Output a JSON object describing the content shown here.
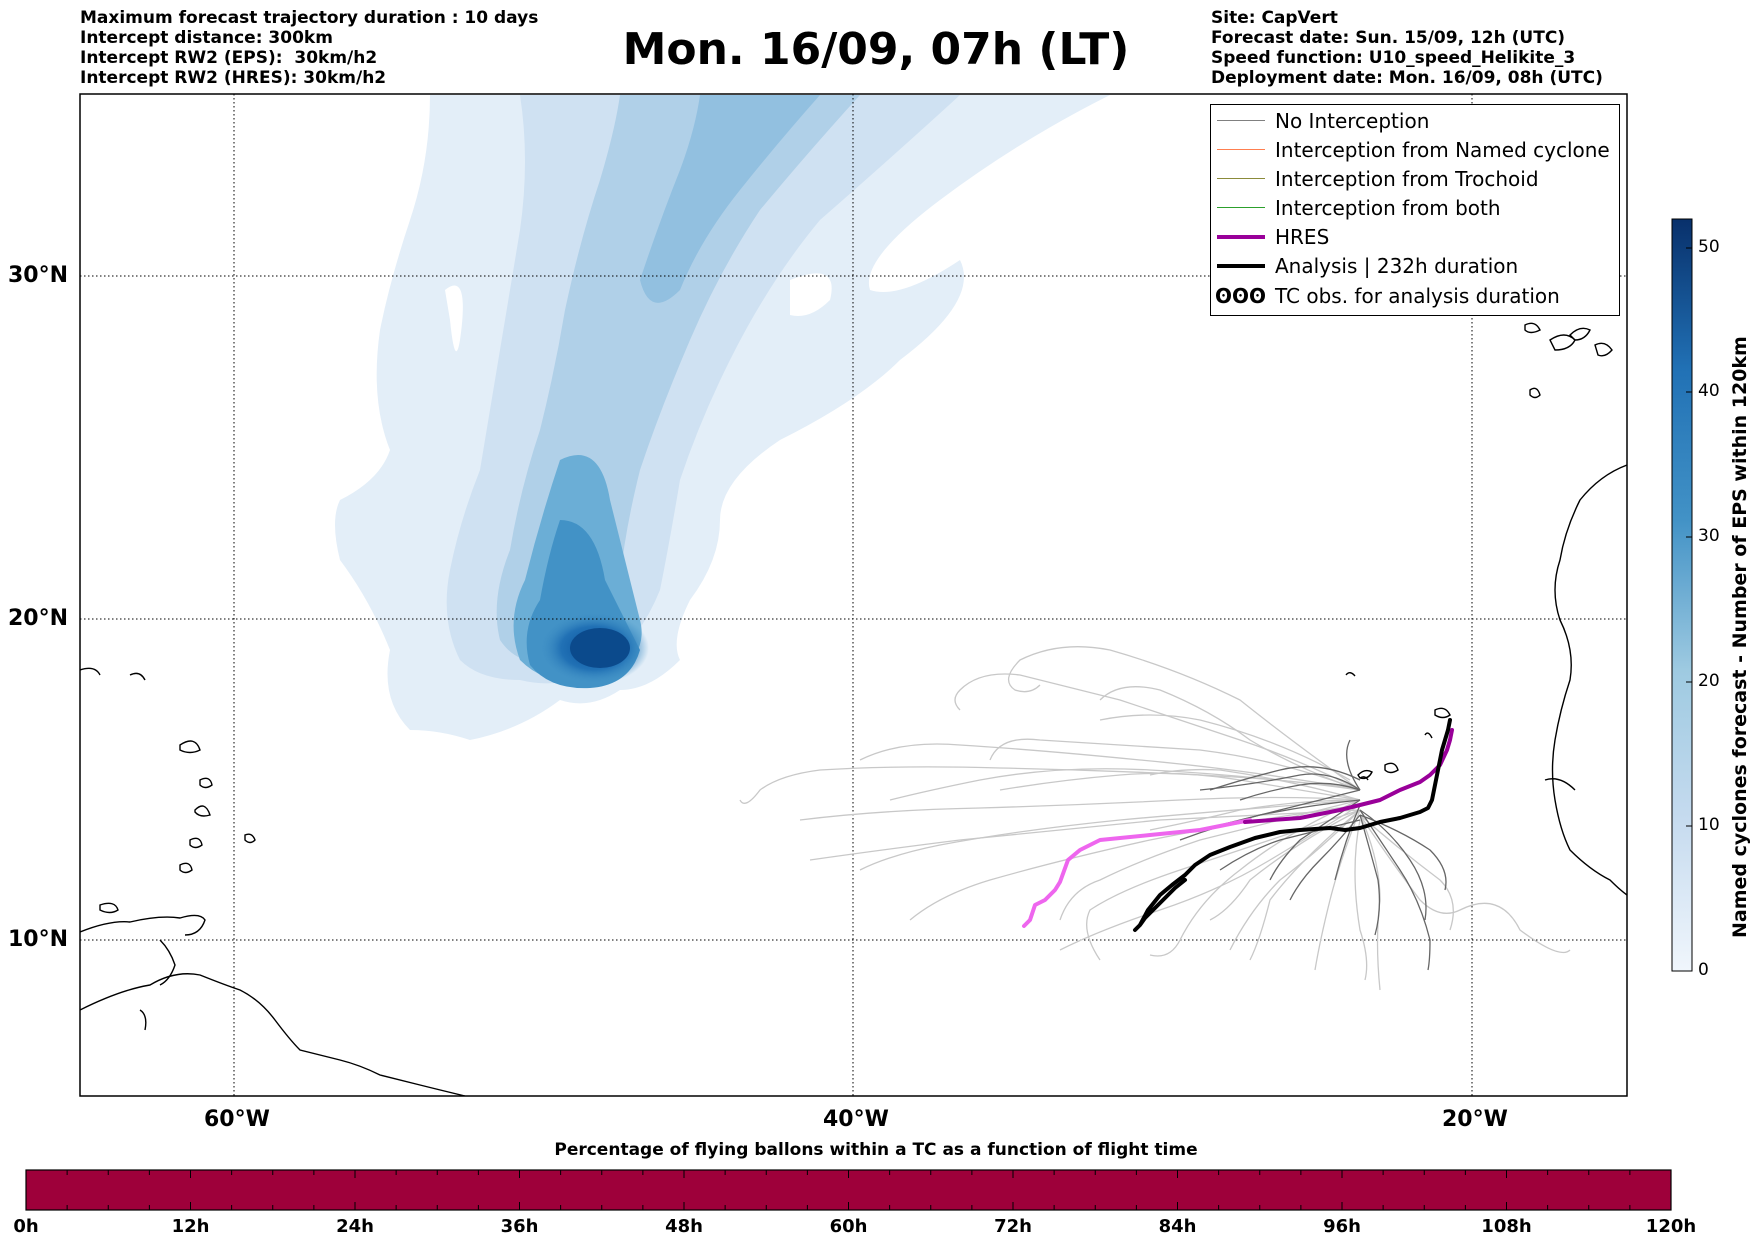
{
  "header_left": [
    "Maximum forecast trajectory duration : 10 days",
    "Intercept distance: 300km",
    "Intercept RW2 (EPS):  30km/h2",
    "Intercept RW2 (HRES): 30km/h2"
  ],
  "header_right": [
    "Site: CapVert",
    "Forecast date: Sun. 15/09, 12h (UTC)",
    "Speed function: U10_speed_Helikite_3",
    "Deployment date: Mon. 16/09, 08h (UTC)"
  ],
  "title": "Mon. 16/09, 07h (LT)",
  "axes": {
    "lon_labels": [
      {
        "text": "60°W",
        "lon": -60
      },
      {
        "text": "40°W",
        "lon": -40
      },
      {
        "text": "20°W",
        "lon": -20
      }
    ],
    "lat_labels": [
      {
        "text": "30°N",
        "lat": 30
      },
      {
        "text": "20°N",
        "lat": 20
      },
      {
        "text": "10°N",
        "lat": 10
      }
    ],
    "lon_range": [
      -65,
      -15
    ],
    "lat_range": [
      5.4,
      34.6
    ],
    "gridlines": "dotted"
  },
  "legend": {
    "items": [
      {
        "label": "No Interception",
        "color": "#808080",
        "width": 1.5
      },
      {
        "label": "Interception from Named cyclone",
        "color": "#ff7f50",
        "width": 1.5
      },
      {
        "label": "Interception from Trochoid",
        "color": "#8b8b3a",
        "width": 1.5
      },
      {
        "label": "Interception from both",
        "color": "#2ca02c",
        "width": 1.5
      },
      {
        "label": "HRES",
        "color": "#990099",
        "width": 4
      },
      {
        "label": "Analysis | 232h duration",
        "color": "#000000",
        "width": 4
      }
    ],
    "tc_obs": {
      "glyph": "ʘʘʘ",
      "label": "TC obs. for analysis duration"
    }
  },
  "colorbar": {
    "label": "Named cyclones forecast - Number of EPS within 120km",
    "ticks": [
      0,
      10,
      20,
      30,
      40,
      50
    ],
    "min": 0,
    "max": 52,
    "color_low": "#e8f1fa",
    "color_high": "#08306b"
  },
  "bottom_bar": {
    "title": "Percentage of flying ballons within a TC as a function of flight time",
    "ticks": [
      "0h",
      "12h",
      "24h",
      "36h",
      "48h",
      "60h",
      "72h",
      "84h",
      "96h",
      "108h",
      "120h"
    ],
    "fill_color": "#9e003a"
  },
  "colors": {
    "hres": "#990099",
    "hres_light": "#ee66ee",
    "analysis": "#000000",
    "ensemble_dark": "#555555",
    "ensemble_light": "#c8c8c8"
  }
}
